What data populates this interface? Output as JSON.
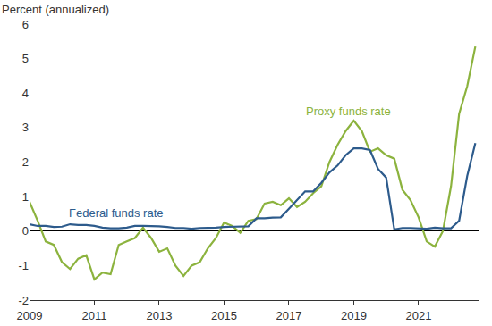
{
  "chart_data": {
    "type": "line",
    "y_label": "Percent (annualized)",
    "x": [
      2009.0,
      2009.25,
      2009.5,
      2009.75,
      2010.0,
      2010.25,
      2010.5,
      2010.75,
      2011.0,
      2011.25,
      2011.5,
      2011.75,
      2012.0,
      2012.25,
      2012.5,
      2012.75,
      2013.0,
      2013.25,
      2013.5,
      2013.75,
      2014.0,
      2014.25,
      2014.5,
      2014.75,
      2015.0,
      2015.25,
      2015.5,
      2015.75,
      2016.0,
      2016.25,
      2016.5,
      2016.75,
      2017.0,
      2017.25,
      2017.5,
      2017.75,
      2018.0,
      2018.25,
      2018.5,
      2018.75,
      2019.0,
      2019.25,
      2019.5,
      2019.75,
      2020.0,
      2020.25,
      2020.5,
      2020.75,
      2021.0,
      2021.25,
      2021.5,
      2021.75,
      2022.0,
      2022.25,
      2022.5,
      2022.75
    ],
    "series": [
      {
        "name": "Proxy funds rate",
        "color": "#8cb33e",
        "values": [
          0.85,
          0.3,
          -0.3,
          -0.4,
          -0.9,
          -1.1,
          -0.8,
          -0.7,
          -1.4,
          -1.2,
          -1.25,
          -0.4,
          -0.3,
          -0.2,
          0.1,
          -0.2,
          -0.6,
          -0.5,
          -1.0,
          -1.3,
          -1.0,
          -0.9,
          -0.5,
          -0.2,
          0.25,
          0.15,
          -0.05,
          0.3,
          0.35,
          0.8,
          0.85,
          0.75,
          0.95,
          0.7,
          0.85,
          1.1,
          1.3,
          2.0,
          2.5,
          2.9,
          3.2,
          2.9,
          2.3,
          2.4,
          2.2,
          2.1,
          1.2,
          0.9,
          0.4,
          -0.3,
          -0.45,
          0.0,
          1.3,
          3.4,
          4.2,
          5.35
        ]
      },
      {
        "name": "Federal funds rate",
        "color": "#2d5b8c",
        "values": [
          0.2,
          0.15,
          0.15,
          0.12,
          0.13,
          0.2,
          0.18,
          0.18,
          0.15,
          0.1,
          0.08,
          0.08,
          0.1,
          0.15,
          0.15,
          0.15,
          0.14,
          0.12,
          0.09,
          0.09,
          0.07,
          0.09,
          0.09,
          0.1,
          0.12,
          0.13,
          0.13,
          0.14,
          0.37,
          0.37,
          0.39,
          0.4,
          0.65,
          0.9,
          1.15,
          1.15,
          1.4,
          1.7,
          1.9,
          2.2,
          2.4,
          2.4,
          2.35,
          1.8,
          1.55,
          0.05,
          0.09,
          0.09,
          0.08,
          0.07,
          0.1,
          0.08,
          0.08,
          0.3,
          1.6,
          2.55
        ]
      }
    ],
    "xlim": [
      2009,
      2022.85
    ],
    "xticks": [
      2009,
      2011,
      2013,
      2015,
      2017,
      2019,
      2021
    ],
    "ylim": [
      -2,
      6
    ],
    "yticks": [
      -2,
      -1,
      0,
      1,
      2,
      3,
      4,
      5,
      6
    ],
    "grid": false,
    "legend": "none"
  }
}
